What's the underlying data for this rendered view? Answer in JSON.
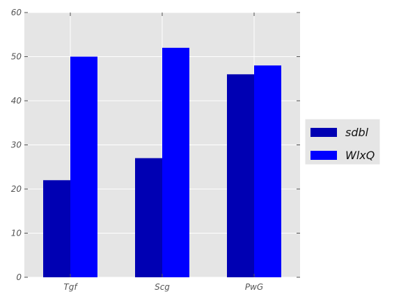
{
  "chart_data": {
    "type": "bar",
    "title": "",
    "xlabel": "",
    "ylabel": "",
    "categories": [
      "Tgf",
      "Scg",
      "PwG"
    ],
    "series": [
      {
        "name": "sdbl",
        "values": [
          22,
          27,
          46
        ],
        "color": "#0000b3"
      },
      {
        "name": "WlxQ",
        "values": [
          50,
          52,
          48
        ],
        "color": "#0000ff"
      }
    ],
    "ylim": [
      0,
      60
    ],
    "yticks": [
      "0",
      "10",
      "20",
      "30",
      "40",
      "50",
      "60"
    ],
    "grid": true,
    "legend_placement": "right",
    "background_color": "#e5e5e5",
    "grid_color": "#ffffff"
  }
}
